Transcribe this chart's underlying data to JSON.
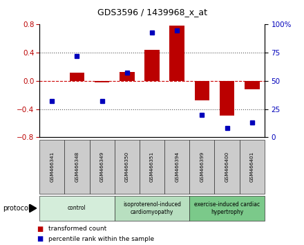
{
  "title": "GDS3596 / 1439968_x_at",
  "samples": [
    "GSM466341",
    "GSM466348",
    "GSM466349",
    "GSM466350",
    "GSM466351",
    "GSM466394",
    "GSM466399",
    "GSM466400",
    "GSM466401"
  ],
  "bar_values": [
    0.0,
    0.12,
    -0.02,
    0.13,
    0.44,
    0.78,
    -0.28,
    -0.49,
    -0.12
  ],
  "dot_values": [
    32,
    72,
    32,
    57,
    93,
    95,
    20,
    8,
    13
  ],
  "ylim_left": [
    -0.8,
    0.8
  ],
  "ylim_right": [
    0,
    100
  ],
  "yticks_left": [
    -0.8,
    -0.4,
    0,
    0.4,
    0.8
  ],
  "yticks_right": [
    0,
    25,
    50,
    75,
    100
  ],
  "ytick_labels_right": [
    "0",
    "25",
    "50",
    "75",
    "100%"
  ],
  "bar_color": "#BB0000",
  "dot_color": "#0000BB",
  "hline_color": "#CC0000",
  "dotted_color": "#555555",
  "sample_box_color": "#cccccc",
  "groups": [
    {
      "label": "control",
      "start": 0,
      "end": 3,
      "color": "#d4edda"
    },
    {
      "label": "isoproterenol-induced\ncardiomyopathy",
      "start": 3,
      "end": 6,
      "color": "#b8dfc0"
    },
    {
      "label": "exercise-induced cardiac\nhypertrophy",
      "start": 6,
      "end": 9,
      "color": "#7bc98a"
    }
  ],
  "legend_bar_label": "transformed count",
  "legend_dot_label": "percentile rank within the sample",
  "protocol_label": "protocol",
  "background_color": "#ffffff"
}
